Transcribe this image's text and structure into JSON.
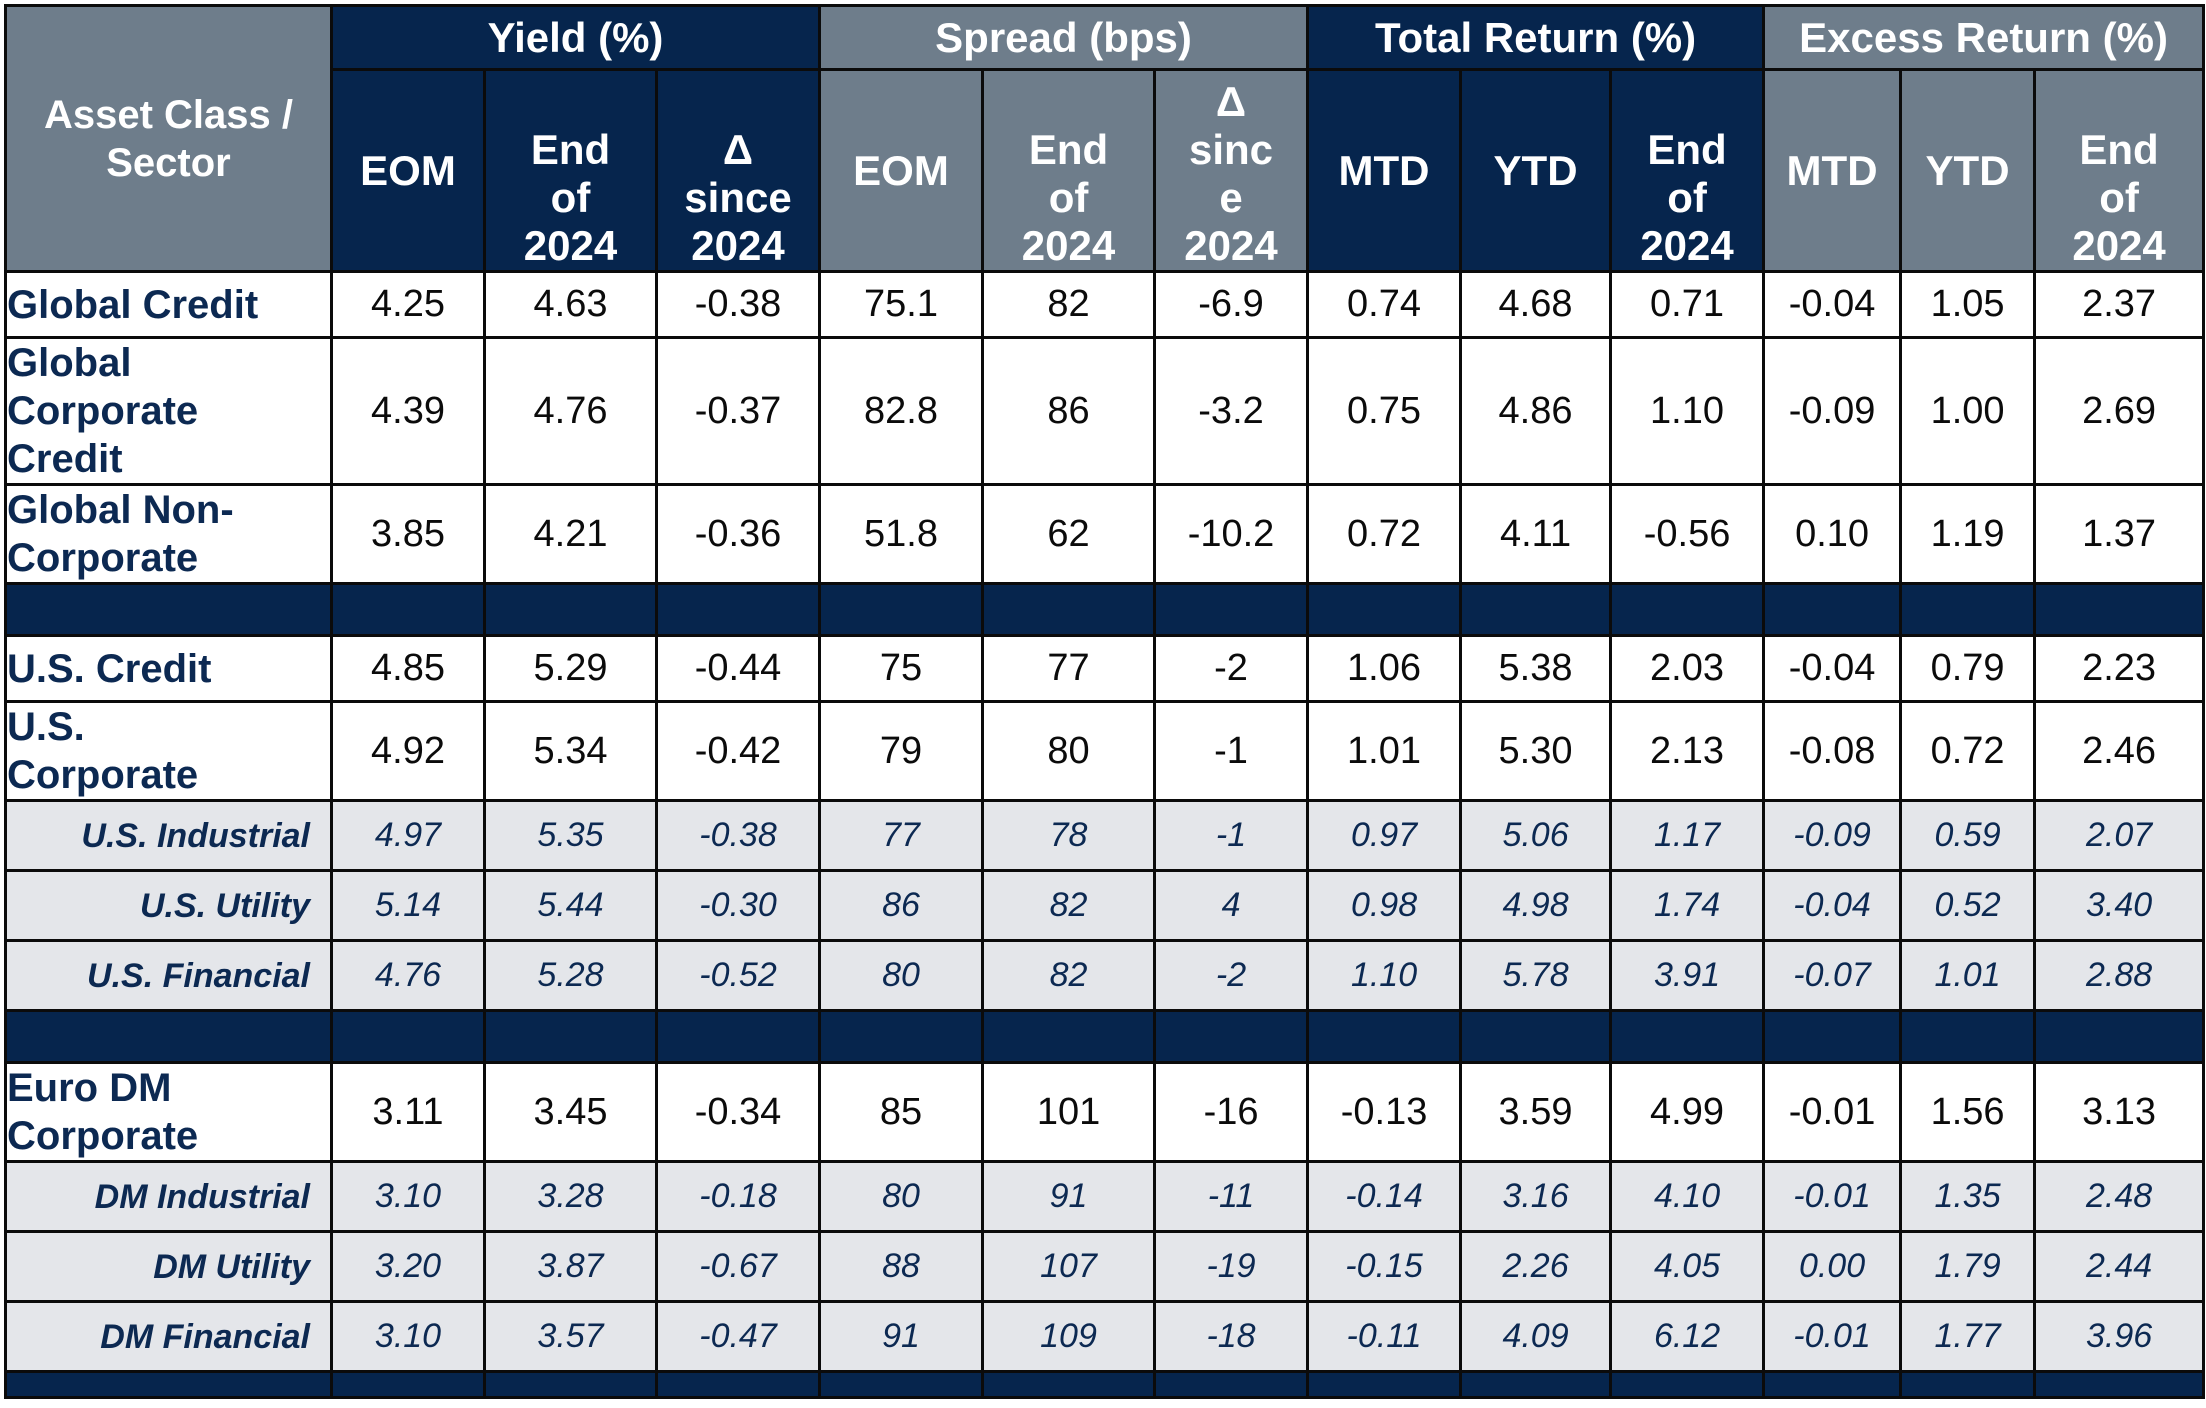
{
  "header": {
    "corner": [
      "Asset Class /",
      "Sector"
    ],
    "groups": {
      "yield": "Yield (%)",
      "spread": "Spread (bps)",
      "total_return": "Total Return (%)",
      "excess_return": "Excess Return (%)"
    },
    "sub": {
      "yield": [
        [
          "EOM"
        ],
        [
          "End",
          "of",
          "2024"
        ],
        [
          "Δ",
          "since",
          "2024"
        ]
      ],
      "spread": [
        [
          "EOM"
        ],
        [
          "End",
          "of",
          "2024"
        ],
        [
          "Δ",
          "sinc",
          "e",
          "2024"
        ]
      ],
      "total_return": [
        [
          "MTD"
        ],
        [
          "YTD"
        ],
        [
          "End",
          "of",
          "2024"
        ]
      ],
      "excess_return": [
        [
          "MTD"
        ],
        [
          "YTD"
        ],
        [
          "End",
          "of",
          "2024"
        ]
      ]
    }
  },
  "sections": [
    {
      "rows": [
        {
          "label": [
            "Global Credit"
          ],
          "type": "main",
          "values": [
            "4.25",
            "4.63",
            "-0.38",
            "75.1",
            "82",
            "-6.9",
            "0.74",
            "4.68",
            "0.71",
            "-0.04",
            "1.05",
            "2.37"
          ]
        },
        {
          "label": [
            "Global",
            "Corporate",
            "Credit"
          ],
          "type": "main",
          "values": [
            "4.39",
            "4.76",
            "-0.37",
            "82.8",
            "86",
            "-3.2",
            "0.75",
            "4.86",
            "1.10",
            "-0.09",
            "1.00",
            "2.69"
          ]
        },
        {
          "label": [
            "Global Non-",
            "Corporate"
          ],
          "type": "main",
          "values": [
            "3.85",
            "4.21",
            "-0.36",
            "51.8",
            "62",
            "-10.2",
            "0.72",
            "4.11",
            "-0.56",
            "0.10",
            "1.19",
            "1.37"
          ]
        }
      ]
    },
    {
      "rows": [
        {
          "label": [
            "U.S. Credit"
          ],
          "type": "main",
          "values": [
            "4.85",
            "5.29",
            "-0.44",
            "75",
            "77",
            "-2",
            "1.06",
            "5.38",
            "2.03",
            "-0.04",
            "0.79",
            "2.23"
          ]
        },
        {
          "label": [
            "U.S.",
            "Corporate"
          ],
          "type": "main",
          "values": [
            "4.92",
            "5.34",
            "-0.42",
            "79",
            "80",
            "-1",
            "1.01",
            "5.30",
            "2.13",
            "-0.08",
            "0.72",
            "2.46"
          ]
        },
        {
          "label": [
            "U.S. Industrial"
          ],
          "type": "sub",
          "values": [
            "4.97",
            "5.35",
            "-0.38",
            "77",
            "78",
            "-1",
            "0.97",
            "5.06",
            "1.17",
            "-0.09",
            "0.59",
            "2.07"
          ]
        },
        {
          "label": [
            "U.S. Utility"
          ],
          "type": "sub",
          "values": [
            "5.14",
            "5.44",
            "-0.30",
            "86",
            "82",
            "4",
            "0.98",
            "4.98",
            "1.74",
            "-0.04",
            "0.52",
            "3.40"
          ]
        },
        {
          "label": [
            "U.S. Financial"
          ],
          "type": "sub",
          "values": [
            "4.76",
            "5.28",
            "-0.52",
            "80",
            "82",
            "-2",
            "1.10",
            "5.78",
            "3.91",
            "-0.07",
            "1.01",
            "2.88"
          ]
        }
      ]
    },
    {
      "rows": [
        {
          "label": [
            "Euro DM",
            "Corporate"
          ],
          "type": "main",
          "values": [
            "3.11",
            "3.45",
            "-0.34",
            "85",
            "101",
            "-16",
            "-0.13",
            "3.59",
            "4.99",
            "-0.01",
            "1.56",
            "3.13"
          ]
        },
        {
          "label": [
            "DM Industrial"
          ],
          "type": "sub",
          "values": [
            "3.10",
            "3.28",
            "-0.18",
            "80",
            "91",
            "-11",
            "-0.14",
            "3.16",
            "4.10",
            "-0.01",
            "1.35",
            "2.48"
          ]
        },
        {
          "label": [
            "DM Utility"
          ],
          "type": "sub",
          "values": [
            "3.20",
            "3.87",
            "-0.67",
            "88",
            "107",
            "-19",
            "-0.15",
            "2.26",
            "4.05",
            "0.00",
            "1.79",
            "2.44"
          ]
        },
        {
          "label": [
            "DM Financial"
          ],
          "type": "sub",
          "values": [
            "3.10",
            "3.57",
            "-0.47",
            "91",
            "109",
            "-18",
            "-0.11",
            "4.09",
            "6.12",
            "-0.01",
            "1.77",
            "3.96"
          ]
        }
      ]
    }
  ],
  "colors": {
    "navy": "#06254d",
    "slate": "#6e7d8b",
    "label_text": "#0c2952",
    "sub_row_bg": "#e4e6ea"
  }
}
